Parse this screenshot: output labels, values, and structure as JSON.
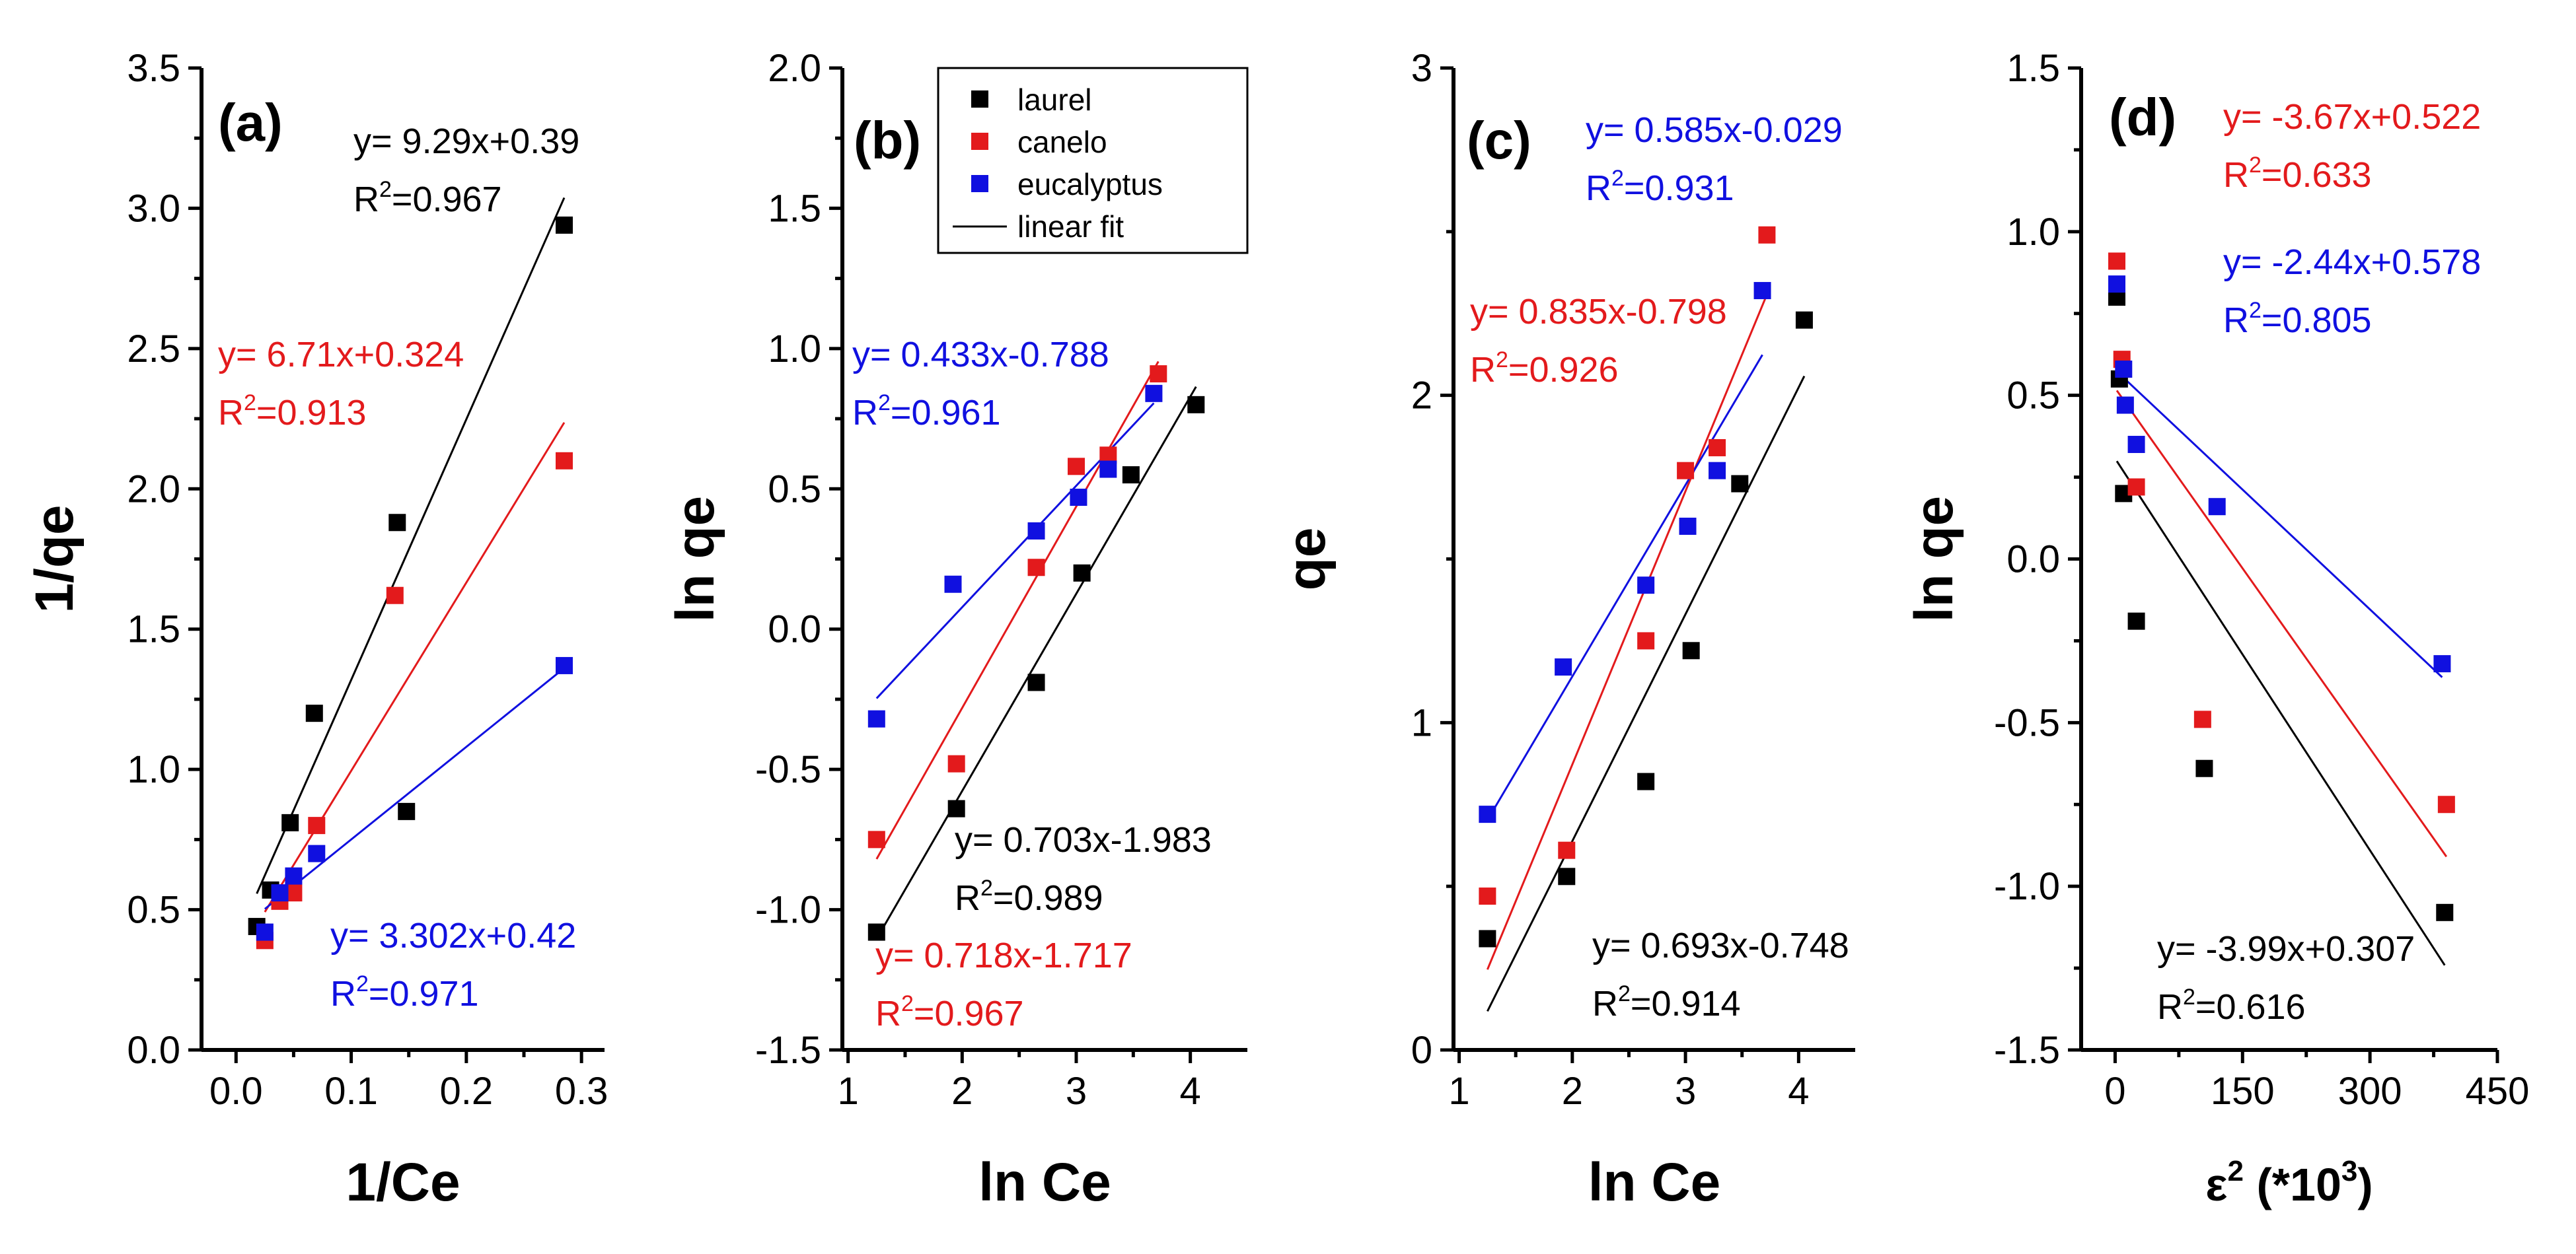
{
  "chart_data": [
    {
      "type": "scatter",
      "panel": "(a)",
      "xlabel": "1/Ce",
      "ylabel": "1/qe",
      "xlim": [
        -0.03,
        0.32
      ],
      "ylim": [
        0.0,
        3.5
      ],
      "xticks": [
        0.0,
        0.1,
        0.2,
        0.3
      ],
      "xtick_labels": [
        "0.0",
        "0.1",
        "0.2",
        "0.3"
      ],
      "yticks": [
        0.0,
        0.5,
        1.0,
        1.5,
        2.0,
        2.5,
        3.0,
        3.5
      ],
      "ytick_labels": [
        "0.0",
        "0.5",
        "1.0",
        "1.5",
        "2.0",
        "2.5",
        "3.0",
        "3.5"
      ],
      "series": [
        {
          "name": "laurel",
          "color": "#000000",
          "x": [
            0.018,
            0.03,
            0.047,
            0.068,
            0.14,
            0.148,
            0.285
          ],
          "y": [
            0.44,
            0.57,
            0.81,
            1.2,
            1.88,
            0.85,
            2.94
          ]
        },
        {
          "name": "canelo",
          "color": "#e31a1c",
          "x": [
            0.025,
            0.038,
            0.05,
            0.07,
            0.138,
            0.285
          ],
          "y": [
            0.39,
            0.53,
            0.56,
            0.8,
            1.62,
            2.1
          ]
        },
        {
          "name": "eucalyptus",
          "color": "#1010e0",
          "x": [
            0.025,
            0.038,
            0.05,
            0.07,
            0.285
          ],
          "y": [
            0.42,
            0.56,
            0.62,
            0.7,
            1.37
          ]
        }
      ],
      "fits": [
        {
          "color": "#000000",
          "slope": 9.29,
          "intercept": 0.39,
          "x_range": [
            0.018,
            0.285
          ],
          "equation": "y= 9.29x+0.39",
          "r2_label": "R",
          "r2_value": "=0.967"
        },
        {
          "color": "#e31a1c",
          "slope": 6.71,
          "intercept": 0.324,
          "x_range": [
            0.025,
            0.285
          ],
          "equation": "y= 6.71x+0.324",
          "r2_label": "R",
          "r2_value": "=0.913"
        },
        {
          "color": "#1010e0",
          "slope": 3.302,
          "intercept": 0.42,
          "x_range": [
            0.025,
            0.285
          ],
          "equation": "y= 3.302x+0.42",
          "r2_label": "R",
          "r2_value": "=0.971"
        }
      ]
    },
    {
      "type": "scatter",
      "panel": "(b)",
      "xlabel": "ln Ce",
      "ylabel": "ln qe",
      "xlim": [
        0.95,
        4.5
      ],
      "ylim": [
        -1.5,
        2.0
      ],
      "xticks": [
        1,
        2,
        3,
        4
      ],
      "xtick_labels": [
        "1",
        "2",
        "3",
        "4"
      ],
      "yticks": [
        -1.5,
        -1.0,
        -0.5,
        0.0,
        0.5,
        1.0,
        1.5,
        2.0
      ],
      "ytick_labels": [
        "-1.5",
        "-1.0",
        "-0.5",
        "0.0",
        "0.5",
        "1.0",
        "1.5",
        "2.0"
      ],
      "series": [
        {
          "name": "laurel",
          "color": "#000000",
          "x": [
            1.25,
            1.95,
            2.65,
            3.05,
            3.48,
            4.05
          ],
          "y": [
            -1.08,
            -0.64,
            -0.19,
            0.2,
            0.55,
            0.8
          ]
        },
        {
          "name": "canelo",
          "color": "#e31a1c",
          "x": [
            1.25,
            1.95,
            2.65,
            3.0,
            3.28,
            3.72
          ],
          "y": [
            -0.75,
            -0.48,
            0.22,
            0.58,
            0.62,
            0.91
          ]
        },
        {
          "name": "eucalyptus",
          "color": "#1010e0",
          "x": [
            1.25,
            1.92,
            2.65,
            3.02,
            3.28,
            3.68
          ],
          "y": [
            -0.32,
            0.16,
            0.35,
            0.47,
            0.57,
            0.84
          ]
        }
      ],
      "fits": [
        {
          "color": "#000000",
          "slope": 0.703,
          "intercept": -1.983,
          "x_range": [
            1.25,
            4.05
          ],
          "equation": "y= 0.703x-1.983",
          "r2_label": "R",
          "r2_value": "=0.989"
        },
        {
          "color": "#e31a1c",
          "slope": 0.718,
          "intercept": -1.717,
          "x_range": [
            1.25,
            3.72
          ],
          "equation": "y= 0.718x-1.717",
          "r2_label": "R",
          "r2_value": "=0.967"
        },
        {
          "color": "#1010e0",
          "slope": 0.433,
          "intercept": -0.788,
          "x_range": [
            1.25,
            3.68
          ],
          "equation": "y= 0.433x-0.788",
          "r2_label": "R",
          "r2_value": "=0.961"
        }
      ],
      "legend": {
        "placement": "top-right",
        "entries": [
          {
            "label": "laurel",
            "color": "#000000",
            "kind": "marker"
          },
          {
            "label": "canelo",
            "color": "#e31a1c",
            "kind": "marker"
          },
          {
            "label": "eucalyptus",
            "color": "#1010e0",
            "kind": "marker"
          },
          {
            "label": "linear fit",
            "color": "#000000",
            "kind": "line"
          }
        ]
      }
    },
    {
      "type": "scatter",
      "panel": "(c)",
      "xlabel": "ln Ce",
      "ylabel": "qe",
      "xlim": [
        0.95,
        4.5
      ],
      "ylim": [
        0,
        3
      ],
      "xticks": [
        1,
        2,
        3,
        4
      ],
      "xtick_labels": [
        "1",
        "2",
        "3",
        "4"
      ],
      "yticks": [
        0,
        1,
        2,
        3
      ],
      "ytick_labels": [
        "0",
        "1",
        "2",
        "3"
      ],
      "series": [
        {
          "name": "laurel",
          "color": "#000000",
          "x": [
            1.25,
            1.95,
            2.65,
            3.05,
            3.48,
            4.05
          ],
          "y": [
            0.34,
            0.53,
            0.82,
            1.22,
            1.73,
            2.23
          ]
        },
        {
          "name": "canelo",
          "color": "#e31a1c",
          "x": [
            1.25,
            1.95,
            2.65,
            3.0,
            3.28,
            3.72
          ],
          "y": [
            0.47,
            0.61,
            1.25,
            1.77,
            1.84,
            2.49
          ]
        },
        {
          "name": "eucalyptus",
          "color": "#1010e0",
          "x": [
            1.25,
            1.92,
            2.65,
            3.02,
            3.28,
            3.68
          ],
          "y": [
            0.72,
            1.17,
            1.42,
            1.6,
            1.77,
            2.32
          ]
        }
      ],
      "fits": [
        {
          "color": "#000000",
          "slope": 0.693,
          "intercept": -0.748,
          "x_range": [
            1.25,
            4.05
          ],
          "equation": "y= 0.693x-0.748",
          "r2_label": "R",
          "r2_value": "=0.914"
        },
        {
          "color": "#e31a1c",
          "slope": 0.835,
          "intercept": -0.798,
          "x_range": [
            1.25,
            3.72
          ],
          "equation": "y= 0.835x-0.798",
          "r2_label": "R",
          "r2_value": "=0.926"
        },
        {
          "color": "#1010e0",
          "slope": 0.585,
          "intercept": -0.029,
          "x_range": [
            1.25,
            3.68
          ],
          "equation": "y= 0.585x-0.029",
          "r2_label": "R",
          "r2_value": "=0.931"
        }
      ]
    },
    {
      "type": "scatter",
      "panel": "(d)",
      "xlabel_base": "ε",
      "xlabel_exp": "2",
      "xlabel_rest": " (*10",
      "xlabel_exp2": "3",
      "xlabel_close": ")",
      "ylabel": "ln qe",
      "xlim": [
        -40,
        450
      ],
      "ylim": [
        -1.5,
        1.5
      ],
      "xticks": [
        0,
        150,
        300,
        450
      ],
      "xtick_labels": [
        "0",
        "150",
        "300",
        "450"
      ],
      "yticks": [
        -1.5,
        -1.0,
        -0.5,
        0.0,
        0.5,
        1.0,
        1.5
      ],
      "ytick_labels": [
        "-1.5",
        "-1.0",
        "-0.5",
        "0.0",
        "0.5",
        "1.0",
        "1.5"
      ],
      "series": [
        {
          "name": "laurel",
          "color": "#000000",
          "x": [
            2,
            5,
            10,
            25,
            105,
            388
          ],
          "y": [
            0.8,
            0.55,
            0.2,
            -0.19,
            -0.64,
            -1.08
          ]
        },
        {
          "name": "canelo",
          "color": "#e31a1c",
          "x": [
            2,
            8,
            25,
            103,
            390
          ],
          "y": [
            0.91,
            0.61,
            0.22,
            -0.49,
            -0.75
          ]
        },
        {
          "name": "eucalyptus",
          "color": "#1010e0",
          "x": [
            2,
            10,
            12,
            25,
            120,
            385
          ],
          "y": [
            0.84,
            0.58,
            0.47,
            0.35,
            0.16,
            -0.32
          ]
        }
      ],
      "fits": [
        {
          "color": "#000000",
          "slope": -0.00399,
          "intercept": 0.307,
          "x_range": [
            2,
            388
          ],
          "equation": "y= -3.99x+0.307",
          "r2_label": "R",
          "r2_value": "=0.616"
        },
        {
          "color": "#e31a1c",
          "slope": -0.00367,
          "intercept": 0.522,
          "x_range": [
            2,
            390
          ],
          "equation": "y= -3.67x+0.522",
          "r2_label": "R",
          "r2_value": "=0.633"
        },
        {
          "color": "#1010e0",
          "slope": -0.00244,
          "intercept": 0.578,
          "x_range": [
            2,
            385
          ],
          "equation": "y= -2.44x+0.578",
          "r2_label": "R",
          "r2_value": "=0.805"
        }
      ]
    }
  ]
}
